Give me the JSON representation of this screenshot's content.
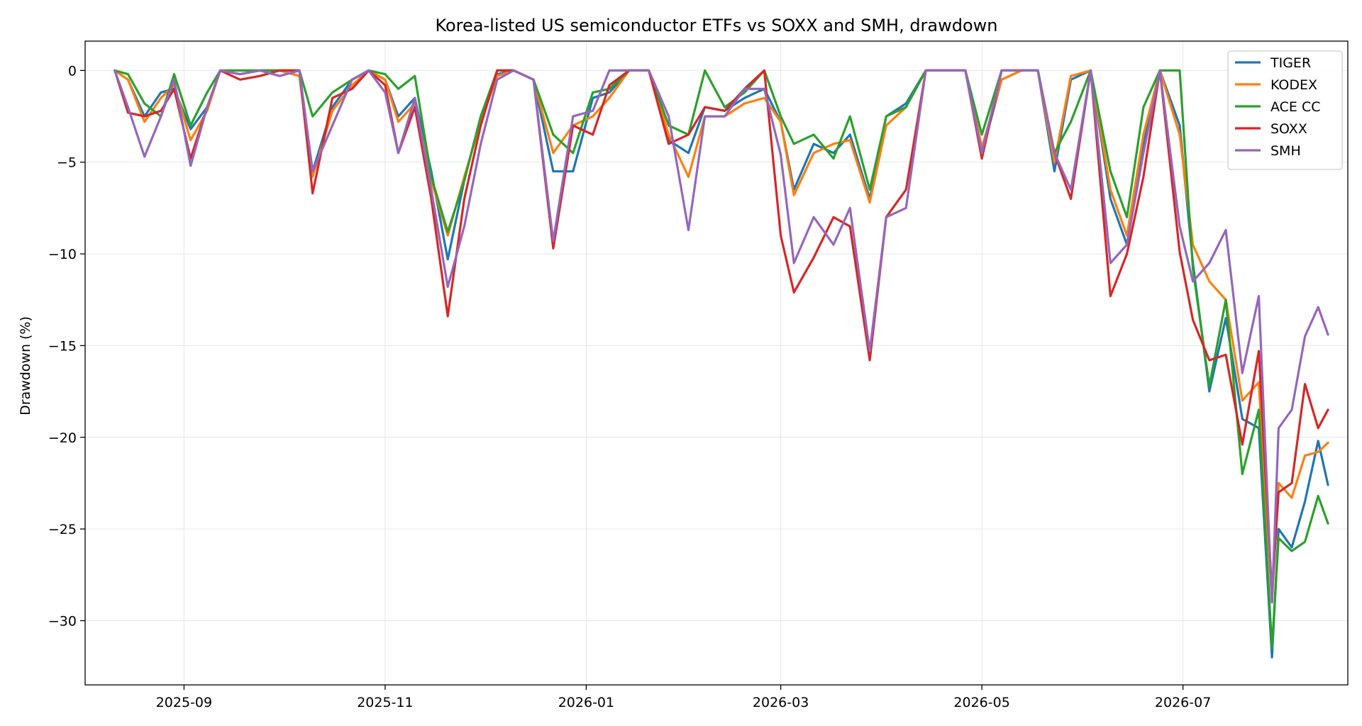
{
  "chart_data": {
    "type": "line",
    "title": "Korea-listed US semiconductor ETFs vs SOXX and SMH, drawdown",
    "xlabel": "",
    "ylabel": "Drawdown (%)",
    "xlim": [
      "2025-08-02",
      "2026-08-20"
    ],
    "ylim": [
      -33.5,
      1.6
    ],
    "x_ticks": [
      "2025-09",
      "2025-11",
      "2026-01",
      "2026-03",
      "2026-05",
      "2026-07"
    ],
    "y_ticks": [
      0,
      -5,
      -10,
      -15,
      -20,
      -25,
      -30
    ],
    "grid": true,
    "legend": "top-right",
    "x": [
      "2025-08-11",
      "2025-08-15",
      "2025-08-20",
      "2025-08-25",
      "2025-08-29",
      "2025-09-03",
      "2025-09-08",
      "2025-09-12",
      "2025-09-18",
      "2025-09-24",
      "2025-09-30",
      "2025-10-06",
      "2025-10-10",
      "2025-10-16",
      "2025-10-22",
      "2025-10-27",
      "2025-11-01",
      "2025-11-05",
      "2025-11-10",
      "2025-11-15",
      "2025-11-20",
      "2025-11-25",
      "2025-11-30",
      "2025-12-05",
      "2025-12-10",
      "2025-12-16",
      "2025-12-22",
      "2025-12-28",
      "2026-01-03",
      "2026-01-08",
      "2026-01-14",
      "2026-01-20",
      "2026-01-26",
      "2026-02-01",
      "2026-02-06",
      "2026-02-12",
      "2026-02-18",
      "2026-02-24",
      "2026-03-01",
      "2026-03-05",
      "2026-03-11",
      "2026-03-17",
      "2026-03-22",
      "2026-03-28",
      "2026-04-02",
      "2026-04-08",
      "2026-04-14",
      "2026-04-20",
      "2026-04-26",
      "2026-05-01",
      "2026-05-07",
      "2026-05-13",
      "2026-05-18",
      "2026-05-23",
      "2026-05-28",
      "2026-06-03",
      "2026-06-09",
      "2026-06-14",
      "2026-06-19",
      "2026-06-24",
      "2026-06-30",
      "2026-07-04",
      "2026-07-09",
      "2026-07-14",
      "2026-07-19",
      "2026-07-24",
      "2026-07-28",
      "2026-07-30",
      "2026-08-03",
      "2026-08-07",
      "2026-08-11",
      "2026-08-14"
    ],
    "series": [
      {
        "name": "TIGER",
        "color": "#1f77b4",
        "values": [
          0,
          -0.5,
          -2.5,
          -1.2,
          -1.0,
          -3.2,
          -2.0,
          0,
          -0.2,
          0,
          0,
          -0.3,
          -5.5,
          -2.0,
          -0.5,
          0,
          -0.5,
          -2.5,
          -1.5,
          -5.5,
          -10.3,
          -6.0,
          -2.5,
          -0.2,
          0,
          -0.5,
          -5.5,
          -5.5,
          -1.5,
          -1.2,
          0,
          0,
          -3.8,
          -4.5,
          -2.0,
          -2.2,
          -1.5,
          -1.0,
          -2.8,
          -6.5,
          -4.0,
          -4.5,
          -3.5,
          -7.0,
          -2.5,
          -1.8,
          0,
          0,
          0,
          -4.5,
          -0.5,
          0,
          0,
          -5.5,
          -0.5,
          0,
          -7.0,
          -9.5,
          -4.0,
          0,
          -3.0,
          -10.5,
          -17.5,
          -13.5,
          -19.0,
          -19.5,
          -32.0,
          -25.0,
          -26.0,
          -23.5,
          -20.2,
          -22.6
        ]
      },
      {
        "name": "KODEX",
        "color": "#ff7f0e",
        "values": [
          0,
          -0.5,
          -2.8,
          -1.5,
          -0.8,
          -3.8,
          -2.2,
          0,
          -0.2,
          0,
          0,
          -0.3,
          -5.8,
          -2.2,
          -0.8,
          0,
          -0.5,
          -2.8,
          -1.8,
          -6.0,
          -9.0,
          -5.8,
          -2.8,
          -0.3,
          0,
          -0.5,
          -4.5,
          -3.0,
          -2.5,
          -1.5,
          0,
          0,
          -3.5,
          -5.8,
          -2.5,
          -2.5,
          -1.8,
          -1.5,
          -2.8,
          -6.8,
          -4.5,
          -4.0,
          -3.8,
          -7.2,
          -3.0,
          -2.0,
          0,
          0,
          0,
          -4.2,
          -0.5,
          0,
          0,
          -5.0,
          -0.3,
          0,
          -6.5,
          -9.0,
          -3.5,
          0,
          -3.5,
          -9.5,
          -11.5,
          -12.5,
          -18.0,
          -17.0,
          -29.0,
          -22.5,
          -23.3,
          -21.0,
          -20.8,
          -20.3
        ]
      },
      {
        "name": "ACE CC",
        "color": "#2ca02c",
        "values": [
          0,
          -0.2,
          -1.8,
          -2.5,
          -0.2,
          -3.0,
          -1.2,
          0,
          0,
          0,
          0,
          0,
          -2.5,
          -1.2,
          -0.5,
          0,
          -0.2,
          -1.0,
          -0.3,
          -5.8,
          -8.8,
          -6.0,
          -2.5,
          0,
          0,
          -0.5,
          -3.5,
          -4.5,
          -1.2,
          -1.0,
          0,
          0,
          -3.0,
          -3.5,
          0,
          -2.0,
          -1.2,
          0,
          -2.5,
          -4.0,
          -3.5,
          -4.8,
          -2.5,
          -6.5,
          -2.5,
          -2.0,
          0,
          0,
          0,
          -3.5,
          0,
          0,
          0,
          -4.5,
          -2.8,
          0,
          -5.5,
          -8.0,
          -2.0,
          0,
          0,
          -10.8,
          -17.2,
          -12.5,
          -22.0,
          -18.5,
          -31.5,
          -25.5,
          -26.2,
          -25.7,
          -23.2,
          -24.7
        ]
      },
      {
        "name": "SOXX",
        "color": "#d62728",
        "values": [
          0,
          -2.3,
          -2.5,
          -2.2,
          -1.0,
          -4.8,
          -2.0,
          0,
          -0.5,
          -0.3,
          0,
          0,
          -6.7,
          -1.5,
          -1.0,
          0,
          -0.8,
          -4.5,
          -2.0,
          -7.0,
          -13.4,
          -7.0,
          -3.0,
          0,
          0,
          -0.5,
          -9.7,
          -3.0,
          -3.5,
          -0.8,
          0,
          0,
          -4.0,
          -3.5,
          -2.0,
          -2.2,
          -1.0,
          0,
          -9.0,
          -12.1,
          -10.2,
          -8.0,
          -8.5,
          -15.8,
          -8.0,
          -6.5,
          0,
          0,
          0,
          -4.8,
          0,
          0,
          0,
          -4.5,
          -7.0,
          0,
          -12.3,
          -10.0,
          -5.8,
          0,
          -9.9,
          -13.6,
          -15.8,
          -15.5,
          -20.4,
          -15.3,
          -28.5,
          -23.0,
          -22.5,
          -17.1,
          -19.5,
          -18.5
        ]
      },
      {
        "name": "SMH",
        "color": "#9467bd",
        "values": [
          0,
          -2.0,
          -4.7,
          -2.5,
          -0.5,
          -5.2,
          -2.0,
          0,
          -0.2,
          0,
          -0.3,
          0,
          -5.5,
          -3.0,
          -0.5,
          0,
          -1.2,
          -4.5,
          -1.5,
          -6.5,
          -11.8,
          -8.5,
          -4.0,
          -0.5,
          0,
          -0.5,
          -9.3,
          -2.5,
          -2.2,
          0,
          0,
          0,
          -2.5,
          -8.7,
          -2.5,
          -2.5,
          -1.0,
          -1.0,
          -4.6,
          -10.5,
          -8.0,
          -9.5,
          -7.5,
          -15.3,
          -8.0,
          -7.5,
          0,
          0,
          0,
          -4.5,
          0,
          0,
          0,
          -4.5,
          -6.5,
          0,
          -10.5,
          -9.5,
          -4.5,
          0,
          -8.5,
          -11.5,
          -10.5,
          -8.7,
          -16.5,
          -12.3,
          -29.0,
          -19.5,
          -18.5,
          -14.5,
          -12.9,
          -14.4
        ]
      }
    ]
  }
}
